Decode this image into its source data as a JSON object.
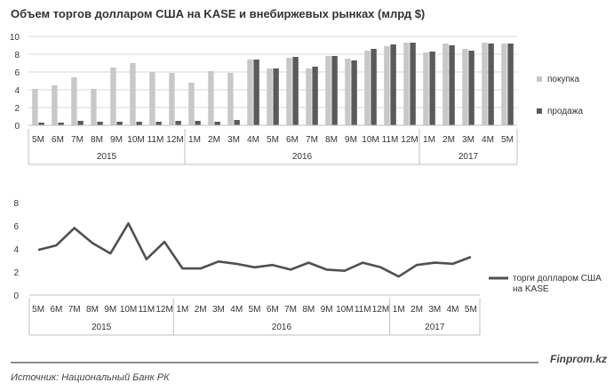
{
  "header": {
    "title": "Объем торгов долларом США на KASE и внебиржевых рынках (млрд $)",
    "source": "Источник: Национальный Банк РК",
    "brand": "Finprom.kz"
  },
  "chart_data": [
    {
      "type": "bar",
      "title": "Объем торгов долларом США на KASE и внебиржевых рынках (млрд $)",
      "categories": [
        "5M",
        "6M",
        "7M",
        "8M",
        "9M",
        "10M",
        "11M",
        "12M",
        "1M",
        "2M",
        "3M",
        "4M",
        "5M",
        "6M",
        "7M",
        "8M",
        "9M",
        "10M",
        "11M",
        "12M",
        "1M",
        "2M",
        "3M",
        "4M",
        "5M"
      ],
      "groups": [
        {
          "label": "2015",
          "count": 8
        },
        {
          "label": "2016",
          "count": 12
        },
        {
          "label": "2017",
          "count": 5
        }
      ],
      "series": [
        {
          "name": "покупка",
          "color": "#c8c8c8",
          "values": [
            4.1,
            4.5,
            5.4,
            4.1,
            6.5,
            7.0,
            6.0,
            5.9,
            4.8,
            6.1,
            5.9,
            7.4,
            6.4,
            7.6,
            6.4,
            7.8,
            7.5,
            8.4,
            8.9,
            9.3,
            8.2,
            9.2,
            8.6,
            9.3,
            9.2
          ]
        },
        {
          "name": "продажа",
          "color": "#5a5a5a",
          "values": [
            0.3,
            0.3,
            0.5,
            0.4,
            0.4,
            0.4,
            0.4,
            0.5,
            0.5,
            0.4,
            0.6,
            7.4,
            6.4,
            7.7,
            6.6,
            7.8,
            7.3,
            8.6,
            9.1,
            9.3,
            8.3,
            9.0,
            8.4,
            9.2,
            9.2
          ]
        }
      ],
      "ylim": [
        0,
        10
      ],
      "yticks": [
        0,
        2,
        4,
        6,
        8,
        10
      ],
      "grid": true,
      "legend": "right"
    },
    {
      "type": "line",
      "categories": [
        "5M",
        "6M",
        "7M",
        "8M",
        "9M",
        "10M",
        "11M",
        "12M",
        "1M",
        "2M",
        "3M",
        "4M",
        "5M",
        "6M",
        "7M",
        "8M",
        "9M",
        "10M",
        "11M",
        "12M",
        "1M",
        "2M",
        "3M",
        "4M",
        "5M"
      ],
      "groups": [
        {
          "label": "2015",
          "count": 8
        },
        {
          "label": "2016",
          "count": 12
        },
        {
          "label": "2017",
          "count": 5
        }
      ],
      "series": [
        {
          "name": "торги долларом США на KASE",
          "color": "#505050",
          "values": [
            3.9,
            4.3,
            5.8,
            4.5,
            3.6,
            6.2,
            3.1,
            4.6,
            2.3,
            2.3,
            2.9,
            2.7,
            2.4,
            2.6,
            2.2,
            2.8,
            2.2,
            2.1,
            2.8,
            2.4,
            1.6,
            2.6,
            2.8,
            2.7,
            3.3
          ]
        }
      ],
      "ylim": [
        0,
        8
      ],
      "yticks": [
        0,
        2,
        4,
        6,
        8
      ],
      "grid": false,
      "legend": "right"
    }
  ]
}
